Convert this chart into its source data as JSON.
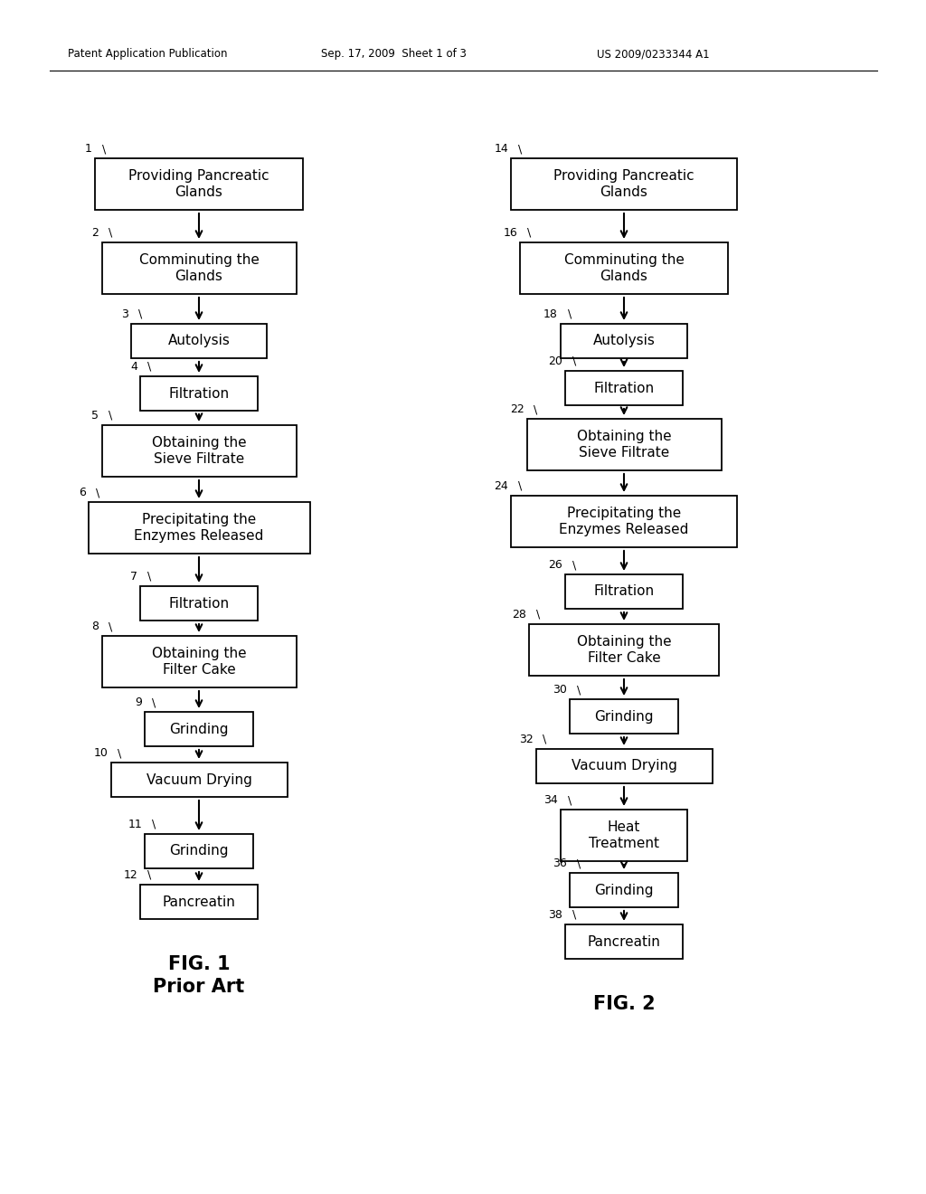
{
  "bg_color": "#ffffff",
  "header_left": "Patent Application Publication",
  "header_mid": "Sep. 17, 2009  Sheet 1 of 3",
  "header_right": "US 2009/0233344 A1",
  "fig1_label": "FIG. 1",
  "fig1_sublabel": "Prior Art",
  "fig2_label": "FIG. 2",
  "fig1_steps": [
    {
      "num": "1",
      "text": "Providing Pancreatic\nGlands"
    },
    {
      "num": "2",
      "text": "Comminuting the\nGlands"
    },
    {
      "num": "3",
      "text": "Autolysis"
    },
    {
      "num": "4",
      "text": "Filtration"
    },
    {
      "num": "5",
      "text": "Obtaining the\nSieve Filtrate"
    },
    {
      "num": "6",
      "text": "Precipitating the\nEnzymes Released"
    },
    {
      "num": "7",
      "text": "Filtration"
    },
    {
      "num": "8",
      "text": "Obtaining the\nFilter Cake"
    },
    {
      "num": "9",
      "text": "Grinding"
    },
    {
      "num": "10",
      "text": "Vacuum Drying"
    },
    {
      "num": "11",
      "text": "Grinding"
    },
    {
      "num": "12",
      "text": "Pancreatin"
    }
  ],
  "fig2_steps": [
    {
      "num": "14",
      "text": "Providing Pancreatic\nGlands"
    },
    {
      "num": "16",
      "text": "Comminuting the\nGlands"
    },
    {
      "num": "18",
      "text": "Autolysis"
    },
    {
      "num": "20",
      "text": "Filtration"
    },
    {
      "num": "22",
      "text": "Obtaining the\nSieve Filtrate"
    },
    {
      "num": "24",
      "text": "Precipitating the\nEnzymes Released"
    },
    {
      "num": "26",
      "text": "Filtration"
    },
    {
      "num": "28",
      "text": "Obtaining the\nFilter Cake"
    },
    {
      "num": "30",
      "text": "Grinding"
    },
    {
      "num": "32",
      "text": "Vacuum Drying"
    },
    {
      "num": "34",
      "text": "Heat\nTreatment"
    },
    {
      "num": "36",
      "text": "Grinding"
    },
    {
      "num": "38",
      "text": "Pancreatin"
    }
  ]
}
